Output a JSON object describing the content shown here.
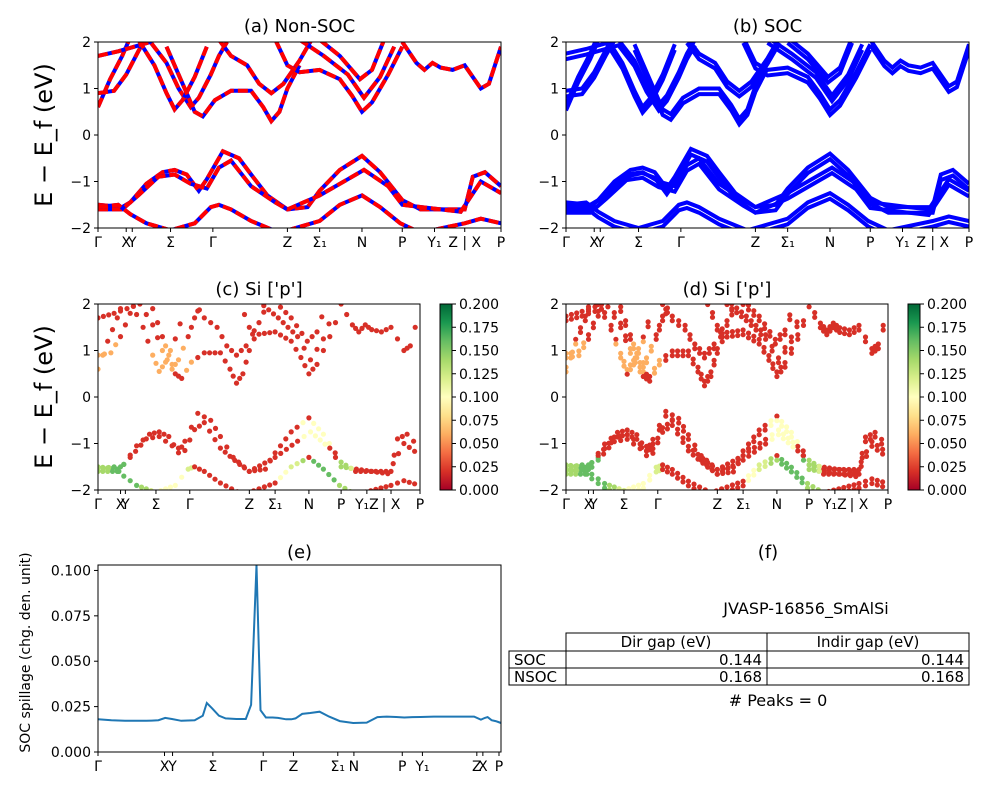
{
  "figure": {
    "ylabel_band": "E − E_f (eV)",
    "kpath_band": [
      "Γ",
      "X",
      "Y",
      "Σ",
      "Γ",
      "Z",
      "Σ₁",
      "N",
      "P",
      "Y₁",
      "Z | X",
      "P"
    ],
    "colors": {
      "nsoc": "#ff0000",
      "soc": "#0000ff",
      "line": "#1f77b4"
    }
  },
  "chart_data": [
    {
      "type": "line",
      "title": "(a) Non-SOC",
      "ylabel": "E − E_f (eV)",
      "ylim": [
        -2,
        2
      ],
      "yticks": [
        -2,
        -1,
        0,
        1,
        2
      ],
      "xticks": [
        "Γ",
        "X",
        "Y",
        "Σ",
        "Γ",
        "Z",
        "Σ₁",
        "N",
        "P",
        "Y₁",
        "Z | X",
        "P"
      ],
      "series_style": "red dashed over blue (SOC and non-SOC overlaid)"
    },
    {
      "type": "line",
      "title": "(b) SOC",
      "ylim": [
        -2,
        2
      ],
      "yticks": [
        -2,
        -1,
        0,
        1,
        2
      ],
      "xticks": [
        "Γ",
        "X",
        "Y",
        "Σ",
        "Γ",
        "Z",
        "Σ₁",
        "N",
        "P",
        "Y₁",
        "Z | X",
        "P"
      ]
    },
    {
      "type": "scatter",
      "title": "(c)  Si ['p']",
      "ylabel": "E − E_f (eV)",
      "ylim": [
        -2,
        2
      ],
      "colorbar": {
        "min": 0.0,
        "max": 0.2,
        "ticks": [
          "0.000",
          "0.025",
          "0.050",
          "0.075",
          "0.100",
          "0.125",
          "0.150",
          "0.175",
          "0.200"
        ],
        "cmap": "RdYlGn"
      }
    },
    {
      "type": "scatter",
      "title": "(d) Si ['p']",
      "ylim": [
        -2,
        2
      ],
      "colorbar": {
        "min": 0.0,
        "max": 0.2,
        "ticks": [
          "0.000",
          "0.025",
          "0.050",
          "0.075",
          "0.100",
          "0.125",
          "0.150",
          "0.175",
          "0.200"
        ],
        "cmap": "RdYlGn"
      }
    },
    {
      "type": "line",
      "title": "(e)",
      "ylabel": "SOC spillage (chg. den. unit)",
      "ylim": [
        0,
        0.103
      ],
      "yticks": [
        "0.000",
        "0.025",
        "0.050",
        "0.075",
        "0.100"
      ],
      "xticks": [
        "Γ",
        "X",
        "Y",
        "Σ",
        "Γ",
        "Z",
        "Σ₁",
        "N",
        "P",
        "Y₁",
        "Z",
        "X",
        "P"
      ],
      "x": [
        0,
        0.1,
        0.2,
        0.3,
        0.36,
        0.4,
        0.45,
        0.5,
        0.55,
        0.62,
        0.72,
        0.78,
        0.81,
        0.85,
        0.9,
        0.95,
        1.03,
        1.1,
        1.14,
        1.18,
        1.21,
        1.25,
        1.3,
        1.34,
        1.4,
        1.44,
        1.47,
        1.52,
        1.58,
        1.65,
        1.72,
        1.8,
        1.9,
        2.0,
        2.08,
        2.15,
        2.22,
        2.28,
        2.34,
        2.4,
        2.5,
        2.6,
        2.7,
        2.8,
        2.85,
        2.88,
        2.9,
        2.93,
        2.96,
        2.98,
        3.0
      ],
      "values": [
        0.018,
        0.0175,
        0.0172,
        0.0172,
        0.0172,
        0.0173,
        0.0175,
        0.0188,
        0.0182,
        0.0172,
        0.0175,
        0.02,
        0.027,
        0.024,
        0.02,
        0.0185,
        0.0182,
        0.0182,
        0.026,
        0.103,
        0.023,
        0.019,
        0.019,
        0.0188,
        0.018,
        0.018,
        0.0185,
        0.021,
        0.0215,
        0.0222,
        0.0195,
        0.017,
        0.016,
        0.0162,
        0.0192,
        0.0195,
        0.0193,
        0.019,
        0.0192,
        0.0193,
        0.0195,
        0.0195,
        0.0195,
        0.0195,
        0.0178,
        0.0188,
        0.0192,
        0.0175,
        0.017,
        0.0165,
        0.016
      ]
    }
  ],
  "panel_f": {
    "title": "(f)",
    "material": "JVASP-16856_SmAlSi",
    "table": {
      "headers": [
        "Dir gap (eV)",
        "Indir gap (eV)"
      ],
      "rows": [
        {
          "label": "SOC",
          "dir": "0.144",
          "indir": "0.144"
        },
        {
          "label": "NSOC",
          "dir": "0.168",
          "indir": "0.168"
        }
      ]
    },
    "peaks_text": "# Peaks = 0"
  }
}
